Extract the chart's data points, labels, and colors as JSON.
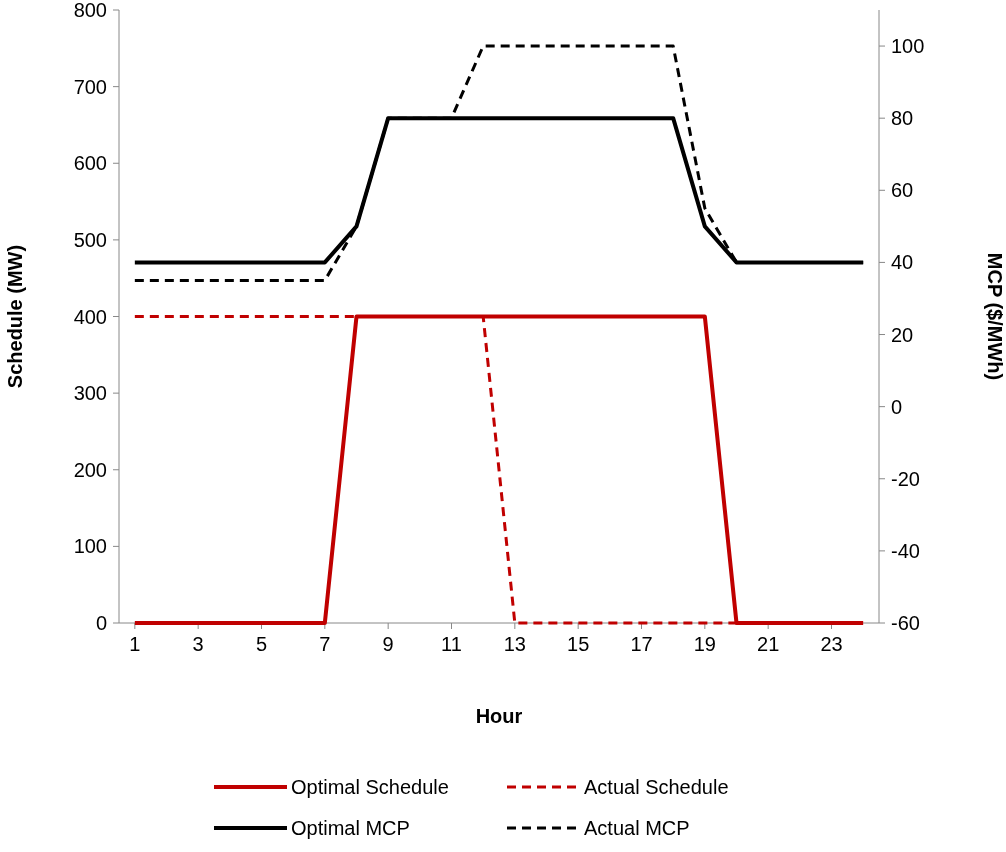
{
  "chart_data": {
    "type": "line",
    "xlabel": "Hour",
    "ylabel": "Schedule (MW)",
    "y2label": "MCP ($/MWh)",
    "x": [
      1,
      2,
      3,
      4,
      5,
      6,
      7,
      8,
      9,
      10,
      11,
      12,
      13,
      14,
      15,
      16,
      17,
      18,
      19,
      20,
      21,
      22,
      23,
      24
    ],
    "xlim": [
      0.5,
      24.5
    ],
    "xticks": [
      1,
      3,
      5,
      7,
      9,
      11,
      13,
      15,
      17,
      19,
      21,
      23
    ],
    "ylim": [
      0,
      800
    ],
    "yticks": [
      0,
      100,
      200,
      300,
      400,
      500,
      600,
      700,
      800
    ],
    "y2lim": [
      -60,
      110
    ],
    "y2ticks": [
      -60,
      -40,
      -20,
      0,
      20,
      40,
      60,
      80,
      100
    ],
    "legend": "bottom",
    "series": [
      {
        "name": "Optimal Schedule",
        "color": "#c00000",
        "line_style": "solid",
        "values": [
          0,
          0,
          0,
          0,
          0,
          0,
          0,
          400,
          400,
          400,
          400,
          400,
          400,
          400,
          400,
          400,
          400,
          400,
          400,
          0,
          0,
          0,
          0,
          0
        ]
      },
      {
        "name": "Actual Schedule",
        "color": "#c00000",
        "line_style": "dashed",
        "values": [
          400,
          400,
          400,
          400,
          400,
          400,
          400,
          400,
          400,
          400,
          400,
          400,
          0,
          0,
          0,
          0,
          0,
          0,
          0,
          0,
          0,
          0,
          0,
          0
        ]
      },
      {
        "name": "Optimal MCP",
        "color": "#000000",
        "line_style": "solid",
        "axis": "y2",
        "values": [
          40,
          40,
          40,
          40,
          40,
          40,
          40,
          50,
          80,
          80,
          80,
          80,
          80,
          80,
          80,
          80,
          80,
          80,
          50,
          40,
          40,
          40,
          40,
          40
        ]
      },
      {
        "name": "Actual MCP",
        "color": "#000000",
        "line_style": "dashed",
        "axis": "y2",
        "values": [
          35,
          35,
          35,
          35,
          35,
          35,
          35,
          50,
          80,
          80,
          80,
          100,
          100,
          100,
          100,
          100,
          100,
          100,
          55,
          40,
          40,
          40,
          40,
          40
        ]
      }
    ]
  }
}
